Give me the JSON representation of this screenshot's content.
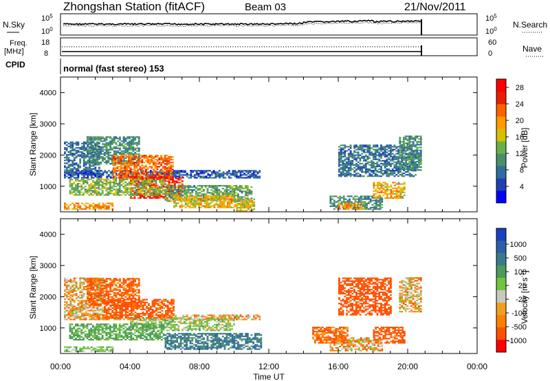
{
  "header": {
    "title": "Zhongshan Station (fitACF)",
    "beam": "Beam 03",
    "date": "21/Nov/2011"
  },
  "noise_panel": {
    "left_label": "N.Sky",
    "right_label": "N.Search",
    "left_ticks": [
      "10^5",
      "10^0"
    ],
    "right_ticks": [
      "10^5",
      "10^0"
    ]
  },
  "freq_panel": {
    "left_label_1": "Freq.",
    "left_label_2": "[MHz]",
    "right_label": "Nave",
    "left_ticks": [
      "18",
      "8"
    ],
    "right_ticks": [
      "60",
      "0"
    ]
  },
  "cpid": {
    "label": "CPID",
    "mode": "normal (fast stereo) 153"
  },
  "colors": {
    "power_scale": [
      "#0000ff",
      "#2040b0",
      "#2e6e9e",
      "#4a8f6a",
      "#6ab04a",
      "#d8c000",
      "#ff9a00",
      "#ff6000",
      "#e82000",
      "#ff0000"
    ],
    "velocity_scale": [
      "#1a3fbf",
      "#2d5fa8",
      "#3b7a8a",
      "#4c9a5c",
      "#72c43c",
      "#c8c8c0",
      "#f0a020",
      "#ff8000",
      "#ff5000",
      "#ff0000"
    ]
  },
  "chart_data": [
    {
      "type": "heatmap",
      "title": "",
      "xlabel": "Time UT",
      "ylabel": "Slant Range [km]",
      "x_ticks": [
        "00:00",
        "04:00",
        "08:00",
        "12:00",
        "16:00",
        "20:00",
        "00:00"
      ],
      "xlim_hours": [
        0,
        24
      ],
      "y_ticks": [
        1000,
        2000,
        3000,
        4000
      ],
      "ylim": [
        180,
        4500
      ],
      "colorbar": {
        "label": "Power [dB]",
        "ticks": [
          4,
          8,
          12,
          16,
          20,
          24,
          28
        ],
        "range": [
          0,
          30
        ]
      },
      "echo_regions": [
        {
          "t0": 0.2,
          "t1": 2.2,
          "r0": 1400,
          "r1": 2400,
          "power": 8
        },
        {
          "t0": 1.5,
          "t1": 4.5,
          "r0": 1700,
          "r1": 2600,
          "power": 10
        },
        {
          "t0": 0.2,
          "t1": 11.5,
          "r0": 1250,
          "r1": 1500,
          "power": 6
        },
        {
          "t0": 3.0,
          "t1": 6.5,
          "r0": 1200,
          "r1": 2000,
          "power": 22
        },
        {
          "t0": 4.0,
          "t1": 7.0,
          "r0": 600,
          "r1": 1300,
          "power": 26
        },
        {
          "t0": 0.5,
          "t1": 6.0,
          "r0": 700,
          "r1": 1200,
          "power": 14
        },
        {
          "t0": 6.0,
          "t1": 11.0,
          "r0": 500,
          "r1": 1000,
          "power": 12
        },
        {
          "t0": 6.5,
          "t1": 10.0,
          "r0": 300,
          "r1": 700,
          "power": 18
        },
        {
          "t0": 0.2,
          "t1": 3.0,
          "r0": 250,
          "r1": 450,
          "power": 20
        },
        {
          "t0": 10.0,
          "t1": 11.2,
          "r0": 200,
          "r1": 600,
          "power": 16
        },
        {
          "t0": 15.5,
          "t1": 18.5,
          "r0": 250,
          "r1": 700,
          "power": 10
        },
        {
          "t0": 16.0,
          "t1": 17.5,
          "r0": 250,
          "r1": 450,
          "power": 20
        },
        {
          "t0": 18.0,
          "t1": 19.8,
          "r0": 600,
          "r1": 1100,
          "power": 18
        },
        {
          "t0": 16.0,
          "t1": 20.5,
          "r0": 1300,
          "r1": 2300,
          "power": 8
        },
        {
          "t0": 19.5,
          "t1": 20.8,
          "r0": 1500,
          "r1": 2600,
          "power": 10
        }
      ]
    },
    {
      "type": "heatmap",
      "title": "",
      "xlabel": "Time UT",
      "ylabel": "Slant Range [km]",
      "x_ticks": [
        "00:00",
        "04:00",
        "08:00",
        "12:00",
        "16:00",
        "20:00",
        "00:00"
      ],
      "xlim_hours": [
        0,
        24
      ],
      "y_ticks": [
        1000,
        2000,
        3000,
        4000
      ],
      "ylim": [
        180,
        4500
      ],
      "colorbar": {
        "label": "Velocity [m s^-1]",
        "ticks": [
          "1000",
          "500",
          "100",
          "25",
          "-25",
          "-100",
          "-500",
          "-1000"
        ]
      },
      "echo_regions": [
        {
          "t0": 0.2,
          "t1": 2.5,
          "r0": 1400,
          "r1": 2600,
          "velocity": 0
        },
        {
          "t0": 1.5,
          "t1": 4.5,
          "r0": 1700,
          "r1": 2600,
          "velocity": -150
        },
        {
          "t0": 0.2,
          "t1": 11.5,
          "r0": 1250,
          "r1": 1400,
          "velocity": 0
        },
        {
          "t0": 2.5,
          "t1": 6.5,
          "r0": 1300,
          "r1": 1900,
          "velocity": -200
        },
        {
          "t0": 4.0,
          "t1": 10.0,
          "r0": 900,
          "r1": 1300,
          "velocity": 150
        },
        {
          "t0": 0.5,
          "t1": 6.0,
          "r0": 600,
          "r1": 1100,
          "velocity": 300
        },
        {
          "t0": 6.0,
          "t1": 11.5,
          "r0": 300,
          "r1": 800,
          "velocity": 600
        },
        {
          "t0": 0.2,
          "t1": 3.0,
          "r0": 230,
          "r1": 400,
          "velocity": 200
        },
        {
          "t0": 15.5,
          "t1": 18.5,
          "r0": 250,
          "r1": 700,
          "velocity": 0
        },
        {
          "t0": 14.5,
          "t1": 16.5,
          "r0": 500,
          "r1": 1000,
          "velocity": -150
        },
        {
          "t0": 18.0,
          "t1": 19.8,
          "r0": 500,
          "r1": 1000,
          "velocity": -200
        },
        {
          "t0": 16.0,
          "t1": 19.0,
          "r0": 1400,
          "r1": 2600,
          "velocity": -300
        },
        {
          "t0": 19.5,
          "t1": 20.8,
          "r0": 1500,
          "r1": 2600,
          "velocity": 0
        }
      ]
    }
  ]
}
